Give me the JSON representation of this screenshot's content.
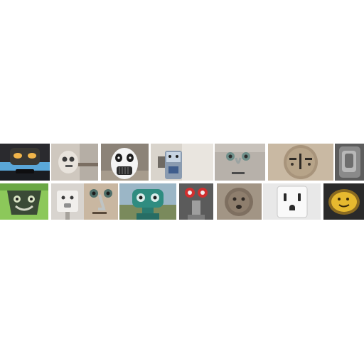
{
  "collage": {
    "background": "#ffffff",
    "rows": [
      {
        "tiles": [
          {
            "name": "car-dome-light-face"
          },
          {
            "name": "door-latch-face"
          },
          {
            "name": "panda-heater-face"
          },
          {
            "name": "kitchen-appliance-face"
          },
          {
            "name": "wall-hook-face"
          },
          {
            "name": "wood-clock-face"
          },
          {
            "name": "car-door-handle-face"
          }
        ]
      },
      {
        "tiles": [
          {
            "name": "green-lamp-face"
          },
          {
            "name": "faucet-face"
          },
          {
            "name": "valve-face"
          },
          {
            "name": "binocular-viewer-face"
          },
          {
            "name": "red-knobs-face"
          },
          {
            "name": "stone-socket-face"
          },
          {
            "name": "wall-outlet-face"
          },
          {
            "name": "yellow-disc-face"
          }
        ]
      }
    ]
  }
}
